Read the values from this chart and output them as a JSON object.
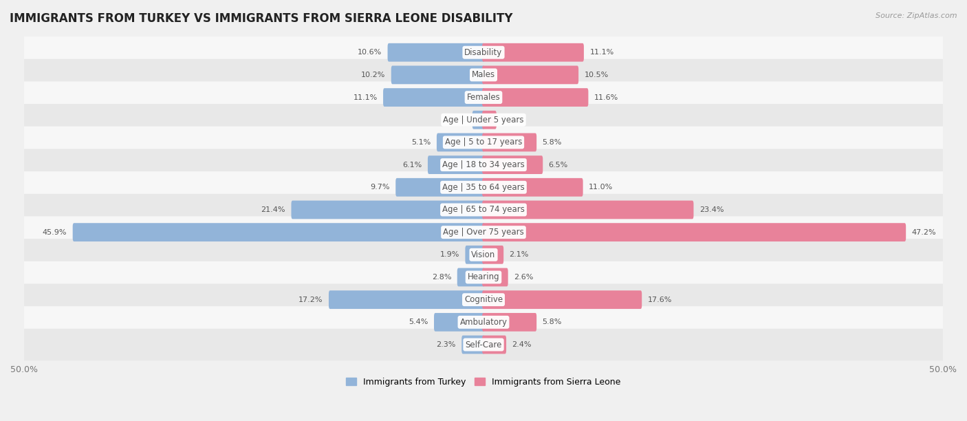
{
  "title": "IMMIGRANTS FROM TURKEY VS IMMIGRANTS FROM SIERRA LEONE DISABILITY",
  "source": "Source: ZipAtlas.com",
  "categories": [
    "Disability",
    "Males",
    "Females",
    "Age | Under 5 years",
    "Age | 5 to 17 years",
    "Age | 18 to 34 years",
    "Age | 35 to 64 years",
    "Age | 65 to 74 years",
    "Age | Over 75 years",
    "Vision",
    "Hearing",
    "Cognitive",
    "Ambulatory",
    "Self-Care"
  ],
  "turkey_values": [
    10.6,
    10.2,
    11.1,
    1.1,
    5.1,
    6.1,
    9.7,
    21.4,
    45.9,
    1.9,
    2.8,
    17.2,
    5.4,
    2.3
  ],
  "sierra_values": [
    11.1,
    10.5,
    11.6,
    1.3,
    5.8,
    6.5,
    11.0,
    23.4,
    47.2,
    2.1,
    2.6,
    17.6,
    5.8,
    2.4
  ],
  "turkey_color": "#92b4d9",
  "sierra_color": "#e8829a",
  "axis_max": 50.0,
  "legend_turkey": "Immigrants from Turkey",
  "legend_sierra": "Immigrants from Sierra Leone",
  "background_color": "#f0f0f0",
  "row_color_light": "#f7f7f7",
  "row_color_dark": "#e8e8e8",
  "title_fontsize": 12,
  "label_fontsize": 8.5,
  "value_fontsize": 8.0
}
